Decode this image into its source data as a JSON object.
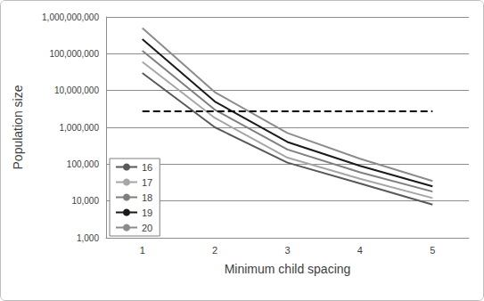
{
  "chart_data": {
    "type": "line",
    "x_label": "Minimum child spacing",
    "y_label": "Population size",
    "categories": [
      1,
      2,
      3,
      4,
      5
    ],
    "series": [
      {
        "name": "16",
        "color": "#595959",
        "values": [
          30000000,
          1000000,
          110000,
          30000,
          8000
        ]
      },
      {
        "name": "17",
        "color": "#a6a6a6",
        "values": [
          60000000,
          1800000,
          150000,
          40000,
          12000
        ]
      },
      {
        "name": "18",
        "color": "#7f7f7f",
        "values": [
          120000000,
          3000000,
          250000,
          60000,
          18000
        ]
      },
      {
        "name": "19",
        "color": "#1a1a1a",
        "values": [
          250000000,
          5000000,
          400000,
          90000,
          25000
        ]
      },
      {
        "name": "20",
        "color": "#8c8c8c",
        "values": [
          500000000,
          9000000,
          700000,
          140000,
          35000
        ]
      }
    ],
    "log": "y",
    "ylim": [
      1000,
      1000000000
    ],
    "yticks": [
      {
        "value": 1000,
        "label": "1,000"
      },
      {
        "value": 10000,
        "label": "10,000"
      },
      {
        "value": 100000,
        "label": "100,000"
      },
      {
        "value": 1000000,
        "label": "1,000,000"
      },
      {
        "value": 10000000,
        "label": "10,000,000"
      },
      {
        "value": 100000000,
        "label": "100,000,000"
      },
      {
        "value": 1000000000,
        "label": "1,000,000,000"
      }
    ],
    "grid": true,
    "legend": "lower left",
    "hline": {
      "value": 2700000,
      "color": "#000000",
      "line_style": "dashed"
    }
  }
}
